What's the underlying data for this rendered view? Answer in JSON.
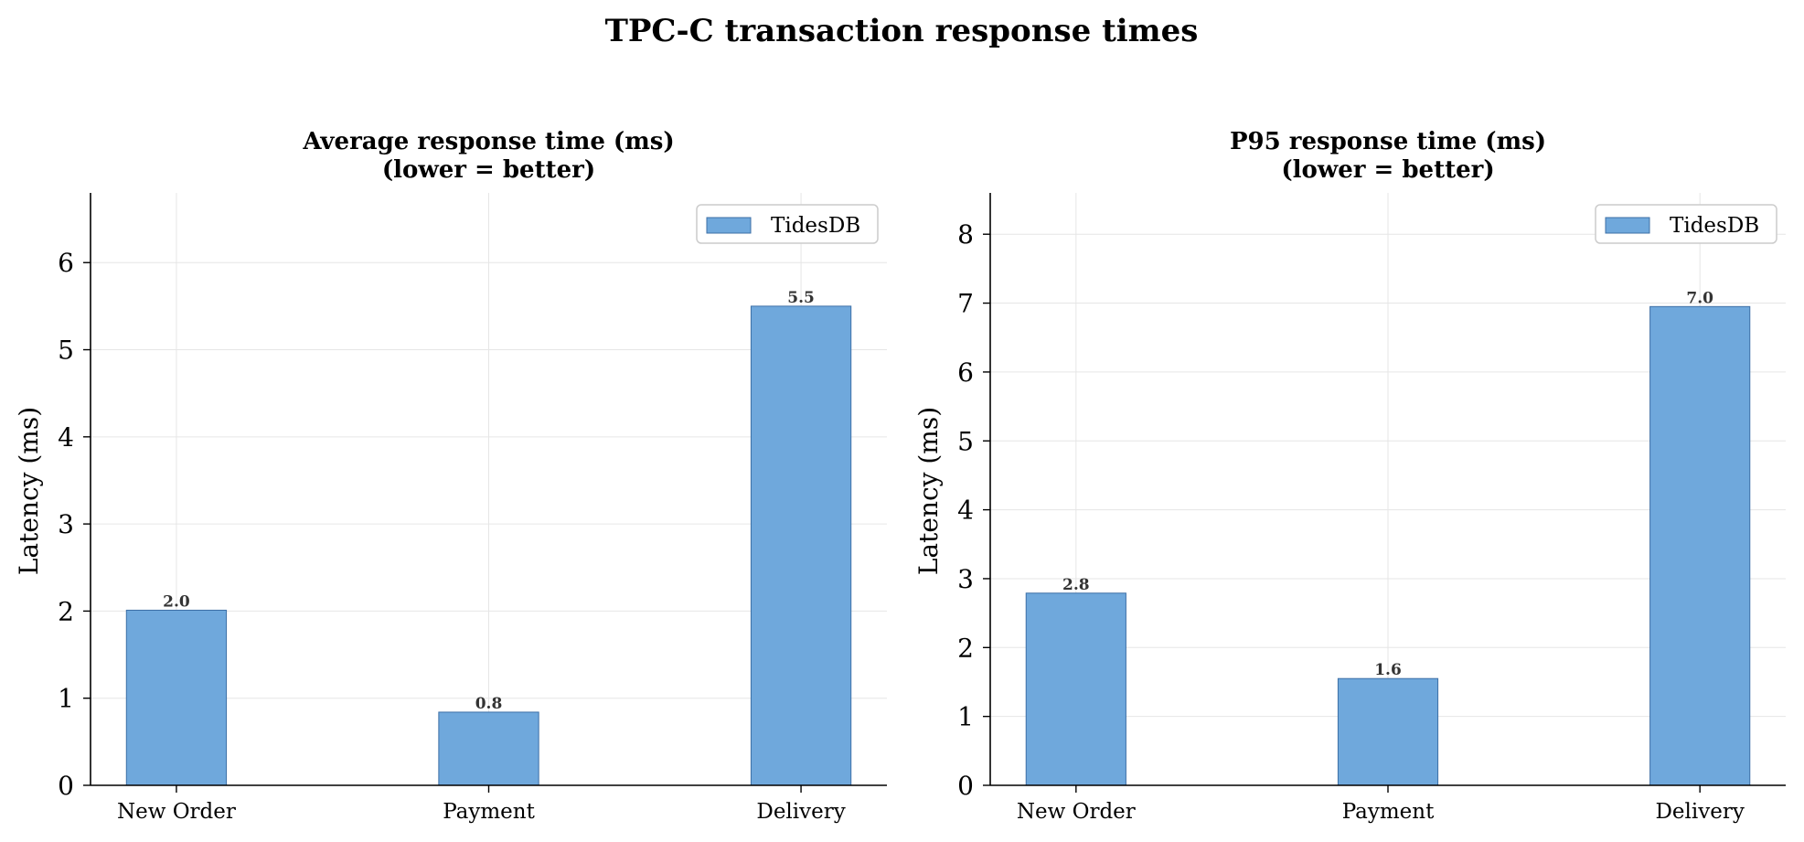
{
  "figure": {
    "title": "TPC-C transaction response times"
  },
  "colors": {
    "bar_fill": "#6fa8dc",
    "bar_edge": "#3d6fa6",
    "grid": "#e6e6e6",
    "axis": "#000000",
    "data_label": "#333333"
  },
  "chart_data": [
    {
      "type": "bar",
      "title": "Average response time (ms)",
      "subtitle": "(lower = better)",
      "xlabel": "",
      "ylabel": "Latency (ms)",
      "categories": [
        "New Order",
        "Payment",
        "Delivery"
      ],
      "series": [
        {
          "name": "TidesDB",
          "values": [
            2.01,
            0.84,
            5.5
          ]
        }
      ],
      "data_labels": [
        "2.0",
        "0.8",
        "5.5"
      ],
      "ylim": [
        0,
        6.8
      ],
      "yticks": [
        0,
        1,
        2,
        3,
        4,
        5,
        6
      ],
      "grid": true,
      "legend": "top-right"
    },
    {
      "type": "bar",
      "title": "P95 response time (ms)",
      "subtitle": "(lower = better)",
      "xlabel": "",
      "ylabel": "Latency (ms)",
      "categories": [
        "New Order",
        "Payment",
        "Delivery"
      ],
      "series": [
        {
          "name": "TidesDB",
          "values": [
            2.79,
            1.55,
            6.95
          ]
        }
      ],
      "data_labels": [
        "2.8",
        "1.6",
        "7.0"
      ],
      "ylim": [
        0,
        8.6
      ],
      "yticks": [
        0,
        1,
        2,
        3,
        4,
        5,
        6,
        7,
        8
      ],
      "grid": true,
      "legend": "top-right"
    }
  ]
}
